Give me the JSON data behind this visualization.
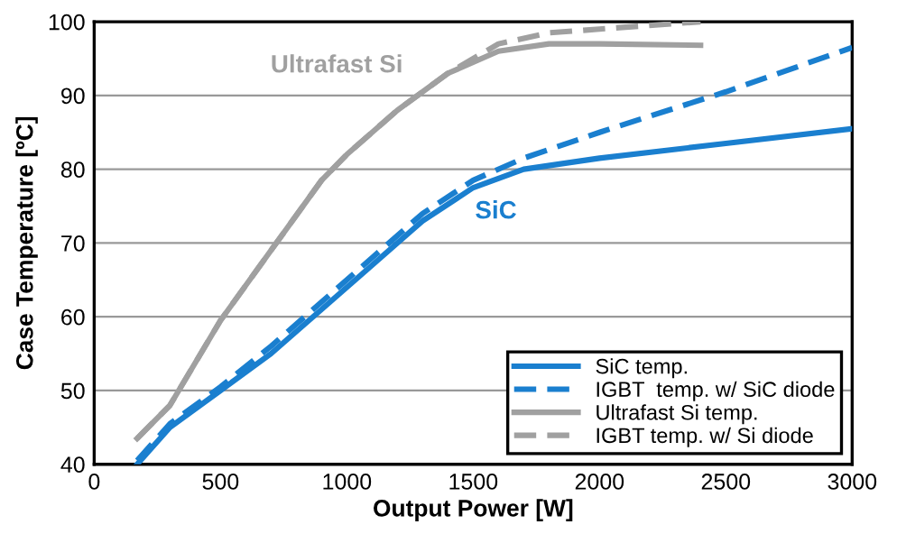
{
  "chart_data": {
    "type": "line",
    "xlabel": "Output Power [W]",
    "ylabel": "Case Temperature [ºC]",
    "xlim": [
      0,
      3000
    ],
    "xticks": [
      0,
      500,
      1000,
      1500,
      2000,
      2500,
      3000
    ],
    "ylim": [
      40,
      100
    ],
    "yticks": [
      40,
      50,
      60,
      70,
      80,
      90,
      100
    ],
    "grid": "y",
    "legend": "bottom right",
    "marker": "none",
    "series": [
      {
        "name": "SiC temp.",
        "color": "#1a7fcf",
        "line_style": "solid",
        "x": [
          170,
          300,
          500,
          700,
          900,
          1100,
          1300,
          1500,
          1700,
          2000,
          2500,
          3000
        ],
        "values": [
          40,
          45,
          50,
          55,
          61,
          67,
          73,
          77.5,
          80,
          81.5,
          83.5,
          85.5
        ]
      },
      {
        "name": "IGBT  temp. w/ SiC diode",
        "color": "#1a7fcf",
        "line_style": "dashed",
        "x": [
          170,
          300,
          500,
          700,
          900,
          1100,
          1300,
          1500,
          1700,
          2000,
          2500,
          3000
        ],
        "values": [
          40.5,
          45.5,
          50.5,
          56,
          62,
          68,
          74,
          78.5,
          81.5,
          85,
          90.5,
          96.5
        ]
      },
      {
        "name": "Ultrafast Si temp.",
        "color": "#a0a0a0",
        "line_style": "solid",
        "x": [
          170,
          300,
          500,
          700,
          900,
          1000,
          1200,
          1400,
          1600,
          1800,
          2000,
          2400
        ],
        "values": [
          43.5,
          48,
          59.5,
          69,
          78.5,
          82,
          88,
          93,
          96,
          97,
          97,
          96.8
        ]
      },
      {
        "name": "IGBT temp. w/ Si diode",
        "color": "#a0a0a0",
        "line_style": "dashed",
        "x": [
          170,
          300,
          500,
          700,
          900,
          1000,
          1200,
          1400,
          1600,
          1800,
          2000,
          2400
        ],
        "values": [
          43.5,
          48,
          59.5,
          69,
          78.5,
          82,
          88,
          93,
          97,
          98.5,
          99,
          100
        ]
      }
    ],
    "annotations": [
      "Ultrafast Si",
      "SiC"
    ]
  }
}
